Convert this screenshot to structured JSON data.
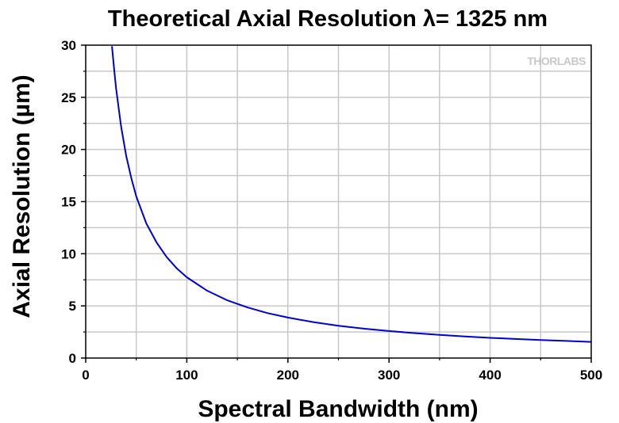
{
  "chart_data": {
    "type": "line",
    "title": "Theoretical Axial Resolution λ= 1325 nm",
    "xlabel": "Spectral Bandwidth (nm)",
    "ylabel": "Axial Resolution (µm)",
    "xlim": [
      0,
      500
    ],
    "ylim": [
      0,
      30
    ],
    "x_ticks": [
      0,
      100,
      200,
      300,
      400,
      500
    ],
    "y_ticks": [
      0,
      5,
      10,
      15,
      20,
      25,
      30
    ],
    "grid": true,
    "series": [
      {
        "color": "#0000cc",
        "x": [
          26,
          28,
          30,
          35,
          40,
          45,
          50,
          60,
          70,
          80,
          90,
          100,
          120,
          140,
          160,
          180,
          200,
          225,
          250,
          275,
          300,
          325,
          350,
          375,
          400,
          425,
          450,
          475,
          500
        ],
        "y": [
          29.9,
          27.8,
          25.9,
          22.2,
          19.4,
          17.3,
          15.5,
          12.9,
          11.1,
          9.7,
          8.6,
          7.75,
          6.46,
          5.54,
          4.85,
          4.31,
          3.88,
          3.45,
          3.1,
          2.82,
          2.59,
          2.39,
          2.22,
          2.07,
          1.94,
          1.83,
          1.73,
          1.64,
          1.55
        ]
      }
    ]
  },
  "brand": {
    "logo_text": "THORLABS"
  }
}
